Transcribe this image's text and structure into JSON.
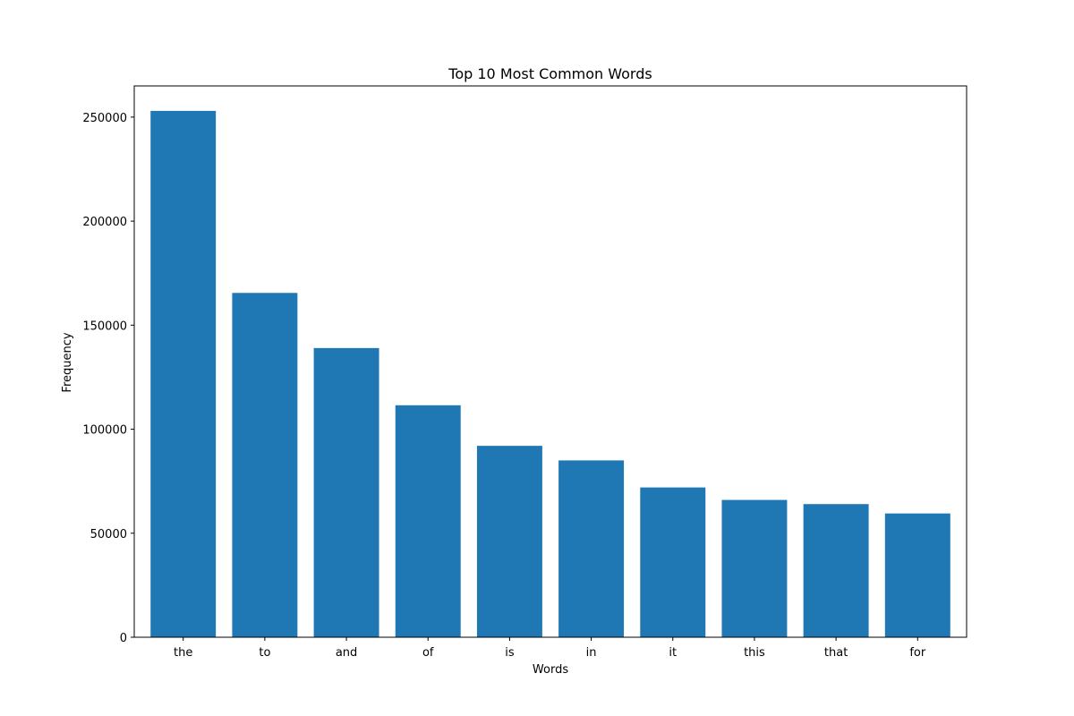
{
  "chart_data": {
    "type": "bar",
    "title": "Top 10 Most Common Words",
    "xlabel": "Words",
    "ylabel": "Frequency",
    "categories": [
      "the",
      "to",
      "and",
      "of",
      "is",
      "in",
      "it",
      "this",
      "that",
      "for"
    ],
    "values": [
      253000,
      165500,
      139000,
      111500,
      92000,
      85000,
      72000,
      66000,
      64000,
      59500
    ],
    "ylim": [
      0,
      265000
    ],
    "yticks": [
      0,
      50000,
      100000,
      150000,
      200000,
      250000
    ],
    "ytick_labels": [
      "0",
      "50000",
      "100000",
      "150000",
      "200000",
      "250000"
    ],
    "bar_color": "#1f77b4",
    "grid": false,
    "legend": "none"
  }
}
